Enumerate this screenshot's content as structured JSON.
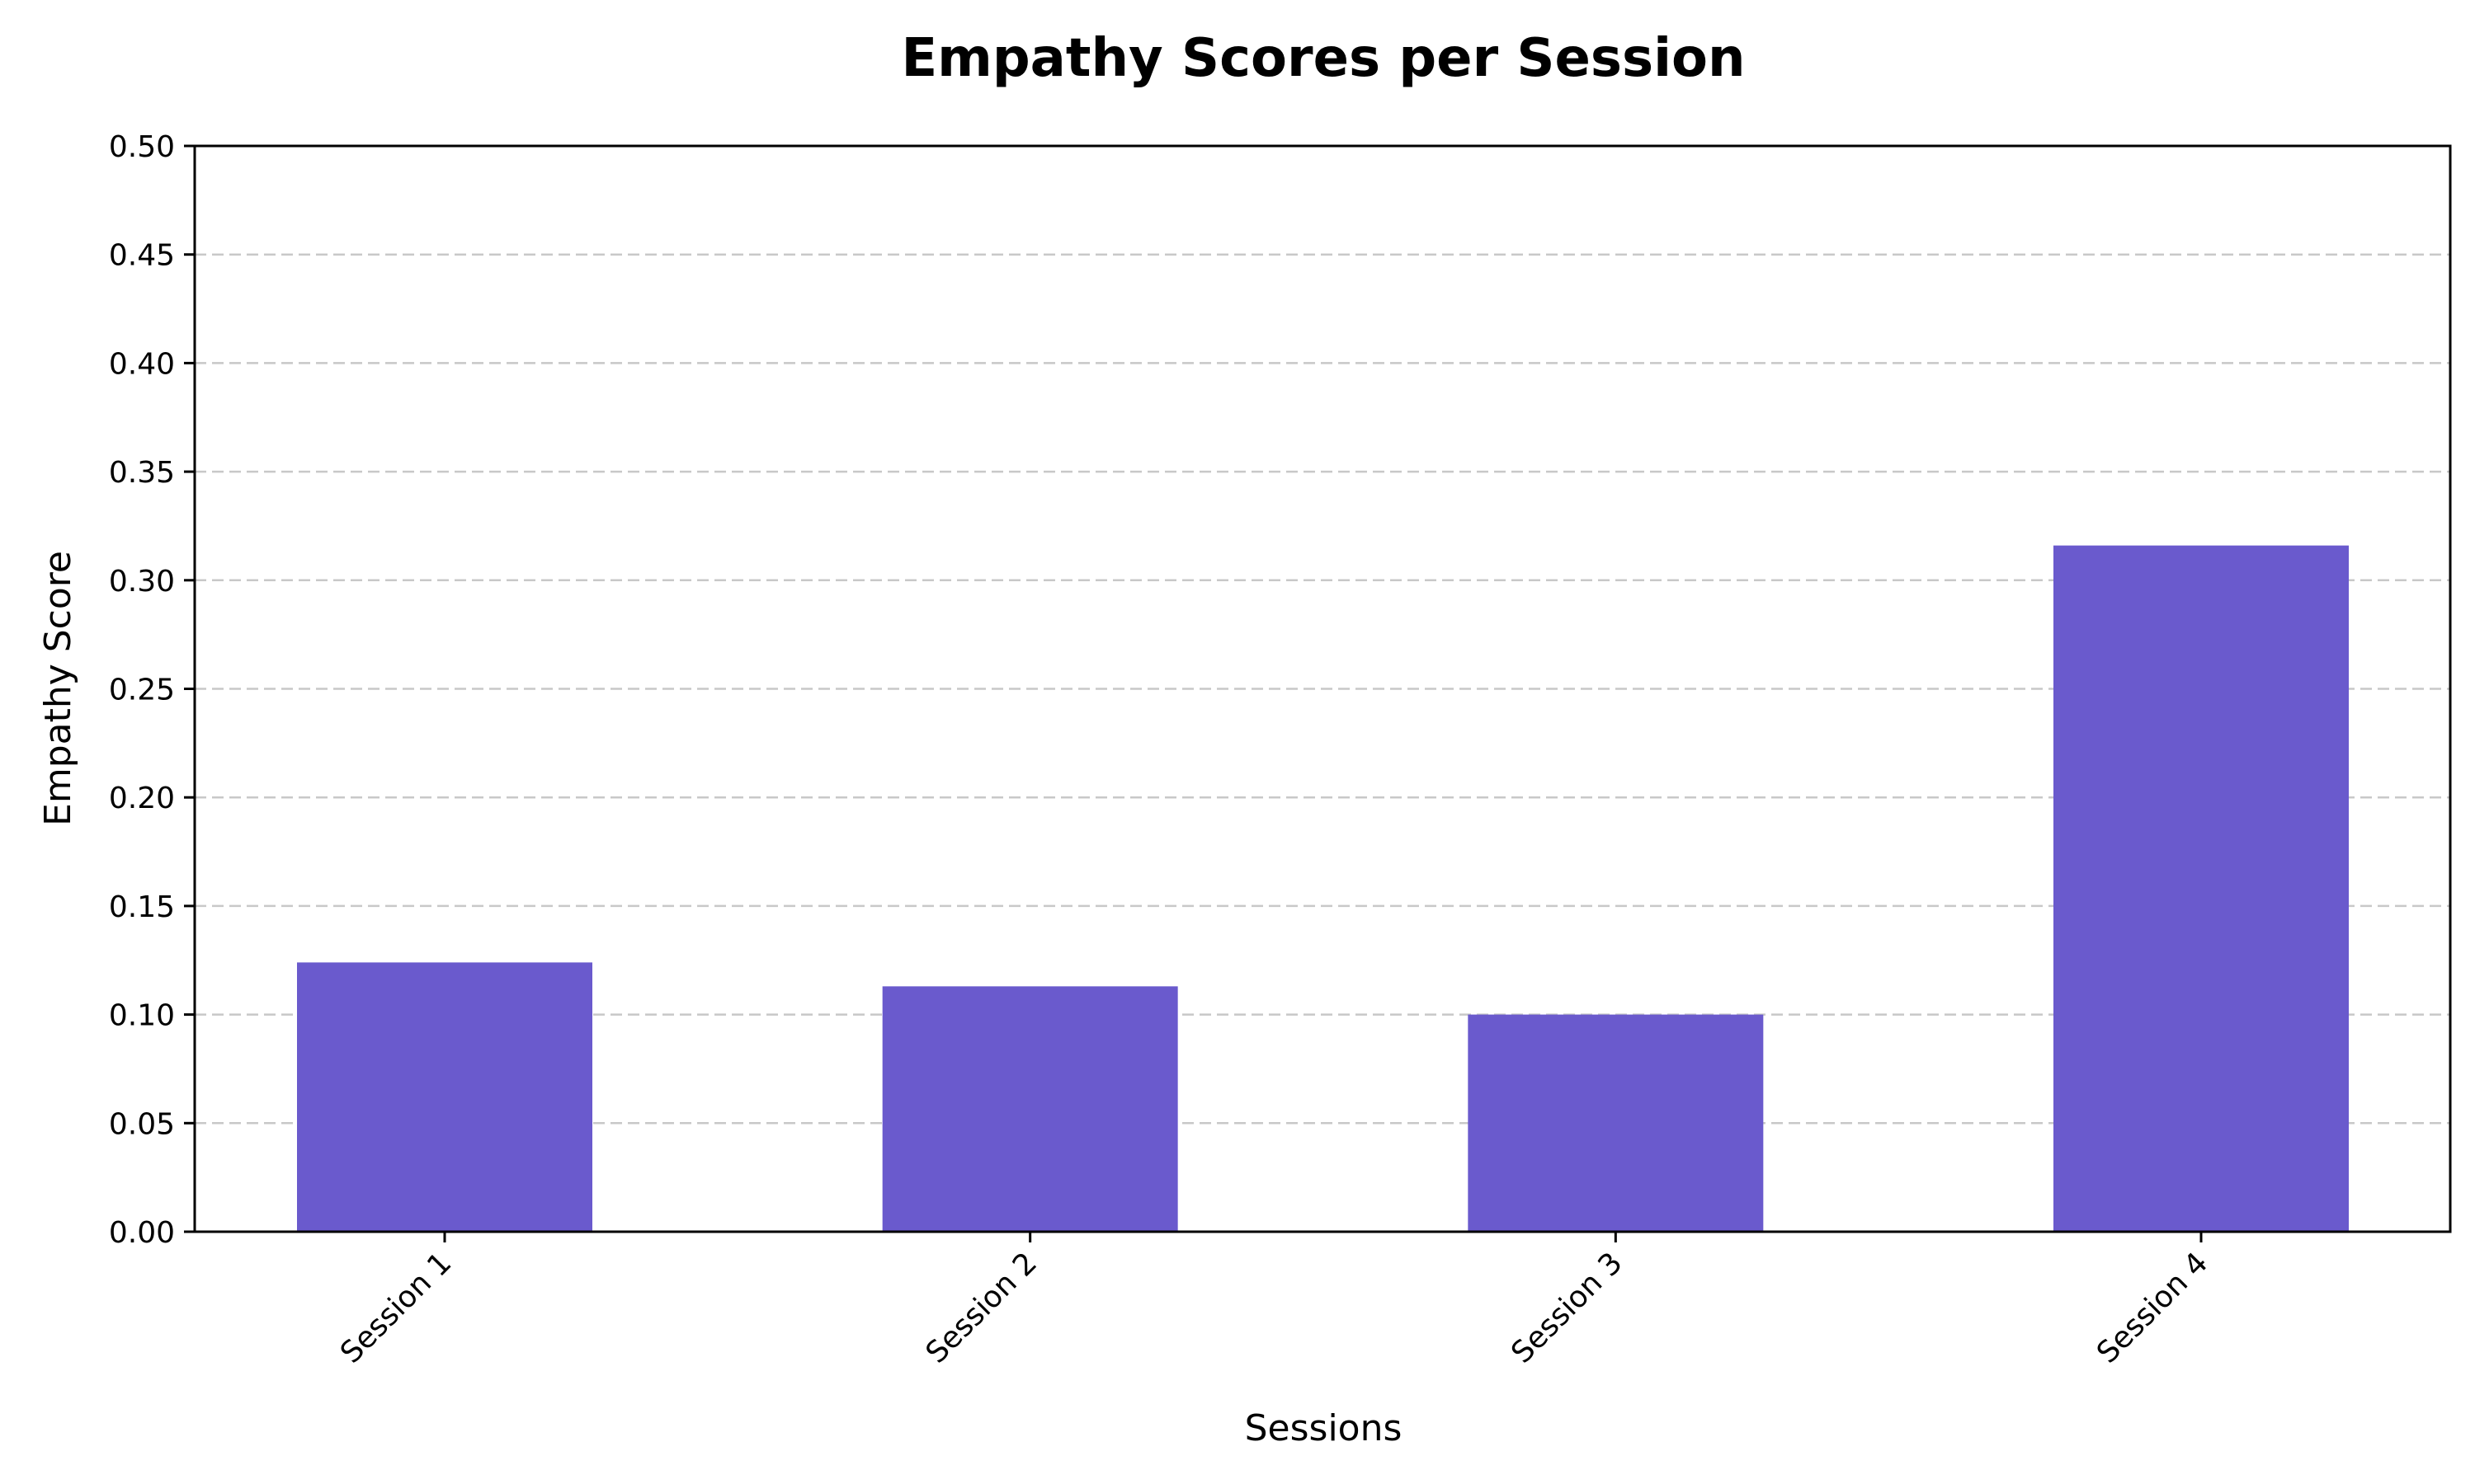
{
  "chart_data": {
    "type": "bar",
    "title": "Empathy Scores per Session",
    "xlabel": "Sessions",
    "ylabel": "Empathy Score",
    "categories": [
      "Session 1",
      "Session 2",
      "Session 3",
      "Session 4"
    ],
    "values": [
      0.124,
      0.113,
      0.1,
      0.316
    ],
    "ylim": [
      0,
      0.5
    ],
    "yticks": [
      "0.00",
      "0.05",
      "0.10",
      "0.15",
      "0.20",
      "0.25",
      "0.30",
      "0.35",
      "0.40",
      "0.45",
      "0.50"
    ],
    "grid": "y-dashed",
    "bar_color": "#6a5acd",
    "grid_color": "#c8c8c8"
  }
}
